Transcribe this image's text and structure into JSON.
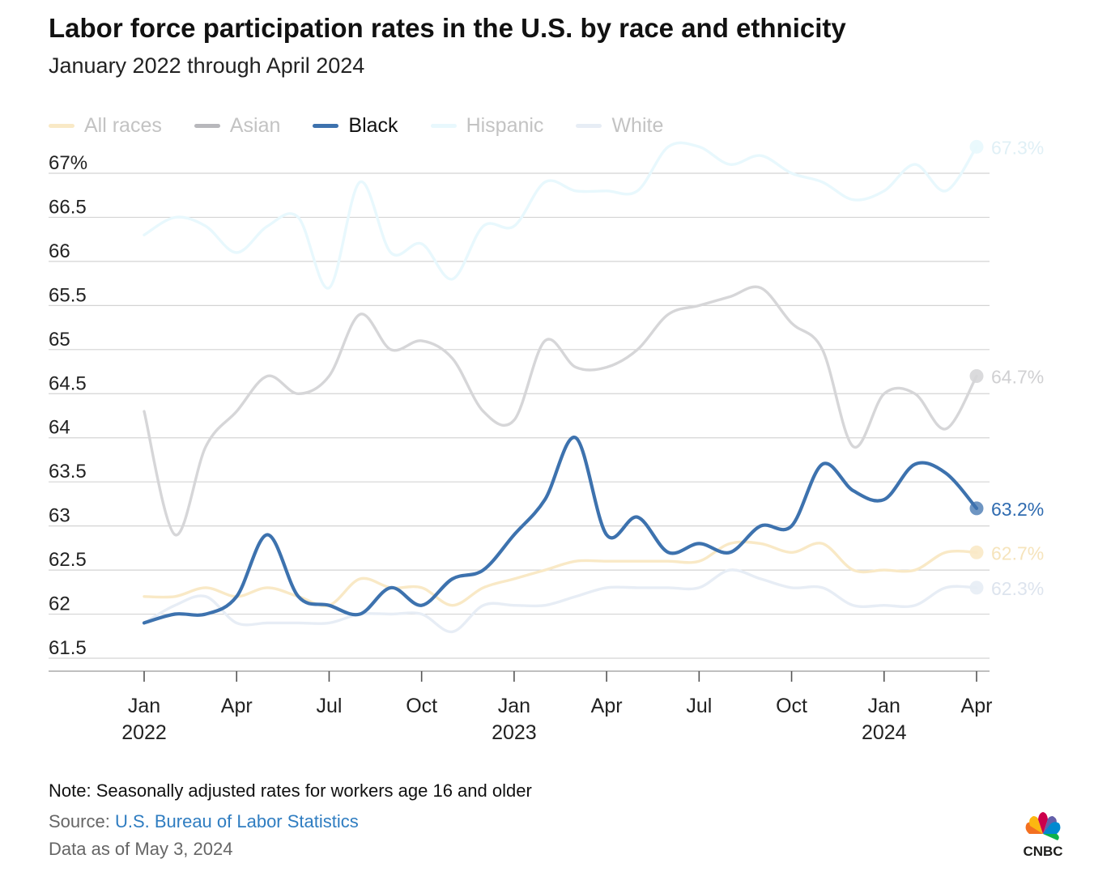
{
  "title": "Labor force participation rates in the U.S. by race and ethnicity",
  "subtitle": "January 2022 through April 2024",
  "footer": {
    "note": "Note: Seasonally adjusted rates for workers age 16 and older",
    "source_label": "Source:",
    "source_link": "U.S. Bureau of Labor Statistics",
    "as_of": "Data as of May 3, 2024"
  },
  "logo": {
    "text": "CNBC",
    "icon": "nbc-peacock-icon"
  },
  "colors": {
    "grid": "#d4d4d4",
    "axis": "#999999",
    "tick_text": "#222222",
    "legend_inactive_text": "#c3c3c3",
    "legend_active_text": "#111111"
  },
  "chart_data": {
    "type": "line",
    "title": "Labor force participation rates in the U.S. by race and ethnicity",
    "subtitle": "January 2022 through April 2024",
    "xlabel": "",
    "ylabel": "",
    "ylim": [
      61.5,
      67.0
    ],
    "yticks": [
      61.5,
      62,
      62.5,
      63,
      63.5,
      64,
      64.5,
      65,
      65.5,
      66,
      66.5,
      67
    ],
    "ytick_labels": [
      "61.5",
      "62",
      "62.5",
      "63",
      "63.5",
      "64",
      "64.5",
      "65",
      "65.5",
      "66",
      "66.5",
      "67%"
    ],
    "x_ticks": [
      {
        "index": 0,
        "line1": "Jan",
        "line2": "2022"
      },
      {
        "index": 3,
        "line1": "Apr",
        "line2": ""
      },
      {
        "index": 6,
        "line1": "Jul",
        "line2": ""
      },
      {
        "index": 9,
        "line1": "Oct",
        "line2": ""
      },
      {
        "index": 12,
        "line1": "Jan",
        "line2": "2023"
      },
      {
        "index": 15,
        "line1": "Apr",
        "line2": ""
      },
      {
        "index": 18,
        "line1": "Jul",
        "line2": ""
      },
      {
        "index": 21,
        "line1": "Oct",
        "line2": ""
      },
      {
        "index": 24,
        "line1": "Jan",
        "line2": "2024"
      },
      {
        "index": 27,
        "line1": "Apr",
        "line2": ""
      }
    ],
    "grid": true,
    "legend_position": "top-left",
    "highlighted_series": "Black",
    "series": [
      {
        "name": "All races",
        "color": "#f9e9c6",
        "active": false,
        "end_label": "62.7%",
        "values": [
          62.2,
          62.2,
          62.3,
          62.2,
          62.3,
          62.2,
          62.1,
          62.4,
          62.3,
          62.3,
          62.1,
          62.3,
          62.4,
          62.5,
          62.6,
          62.6,
          62.6,
          62.6,
          62.6,
          62.8,
          62.8,
          62.7,
          62.8,
          62.5,
          62.5,
          62.5,
          62.7,
          62.7
        ]
      },
      {
        "name": "Asian",
        "color": "#d6d6d8",
        "active": false,
        "end_label": "64.7%",
        "values": [
          64.3,
          62.9,
          63.9,
          64.3,
          64.7,
          64.5,
          64.7,
          65.4,
          65.0,
          65.1,
          64.9,
          64.3,
          64.2,
          65.1,
          64.8,
          64.8,
          65.0,
          65.4,
          65.5,
          65.6,
          65.7,
          65.3,
          65.0,
          63.9,
          64.5,
          64.5,
          64.1,
          64.7
        ]
      },
      {
        "name": "Black",
        "color": "#3d72ae",
        "active": true,
        "end_label": "63.2%",
        "values": [
          61.9,
          62.0,
          62.0,
          62.2,
          62.9,
          62.2,
          62.1,
          62.0,
          62.3,
          62.1,
          62.4,
          62.5,
          62.9,
          63.3,
          64.0,
          62.9,
          63.1,
          62.7,
          62.8,
          62.7,
          63.0,
          63.0,
          63.7,
          63.4,
          63.3,
          63.7,
          63.6,
          63.2
        ]
      },
      {
        "name": "Hispanic",
        "color": "#e8f8fd",
        "active": false,
        "end_label": "67.3%",
        "values": [
          66.3,
          66.5,
          66.4,
          66.1,
          66.4,
          66.5,
          65.7,
          66.9,
          66.1,
          66.2,
          65.8,
          66.4,
          66.4,
          66.9,
          66.8,
          66.8,
          66.8,
          67.3,
          67.3,
          67.1,
          67.2,
          67.0,
          66.9,
          66.7,
          66.8,
          67.1,
          66.8,
          67.3
        ]
      },
      {
        "name": "White",
        "color": "#e7edf5",
        "active": false,
        "end_label": "62.3%",
        "values": [
          61.9,
          62.1,
          62.2,
          61.9,
          61.9,
          61.9,
          61.9,
          62.0,
          62.0,
          62.0,
          61.8,
          62.1,
          62.1,
          62.1,
          62.2,
          62.3,
          62.3,
          62.3,
          62.3,
          62.5,
          62.4,
          62.3,
          62.3,
          62.1,
          62.1,
          62.1,
          62.3,
          62.3
        ]
      }
    ]
  }
}
